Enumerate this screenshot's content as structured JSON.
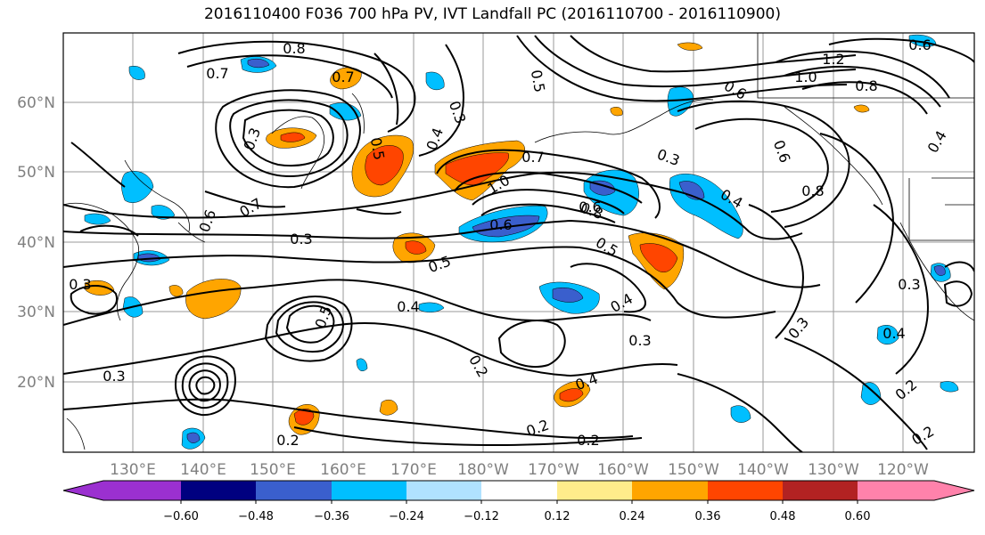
{
  "title": "2016110400 F036 700 hPa PV, IVT Landfall PC (2016110700 - 2016110900)",
  "lat_labels": [
    "60°N",
    "50°N",
    "40°N",
    "30°N",
    "20°N"
  ],
  "lon_labels": [
    "130°E",
    "140°E",
    "150°E",
    "160°E",
    "170°E",
    "180°W",
    "170°W",
    "160°W",
    "150°W",
    "140°W",
    "130°W",
    "120°W"
  ],
  "colorbar": {
    "colors": [
      "#9b30d0",
      "#000080",
      "#3a5fcd",
      "#00bfff",
      "#b0e2ff",
      "#ffffff",
      "#ffec8b",
      "#ffa500",
      "#ff4500",
      "#b22222",
      "#ff82ab"
    ],
    "ticks": [
      "−0.60",
      "−0.48",
      "−0.36",
      "−0.24",
      "−0.12",
      "0.12",
      "0.24",
      "0.36",
      "0.48",
      "0.60"
    ]
  },
  "contour_labels": [
    "0.8",
    "0.7",
    "0.7",
    "0.5",
    "0.4",
    "0.3",
    "0.5",
    "0.3",
    "1.0",
    "0.7",
    "0.3",
    "0.4",
    "0.8",
    "0.6",
    "0.6",
    "1.2",
    "1.0",
    "0.8",
    "0.6",
    "0.4",
    "0.6",
    "0.6",
    "0.7",
    "0.3",
    "0.5",
    "0.6",
    "0.8",
    "0.5",
    "0.4",
    "0.4",
    "0.3",
    "0.3",
    "0.2",
    "0.4",
    "0.2",
    "0.2",
    "0.3",
    "0.4",
    "0.2",
    "0.2",
    "0.2",
    "0.3",
    "0.3",
    "0.5"
  ]
}
